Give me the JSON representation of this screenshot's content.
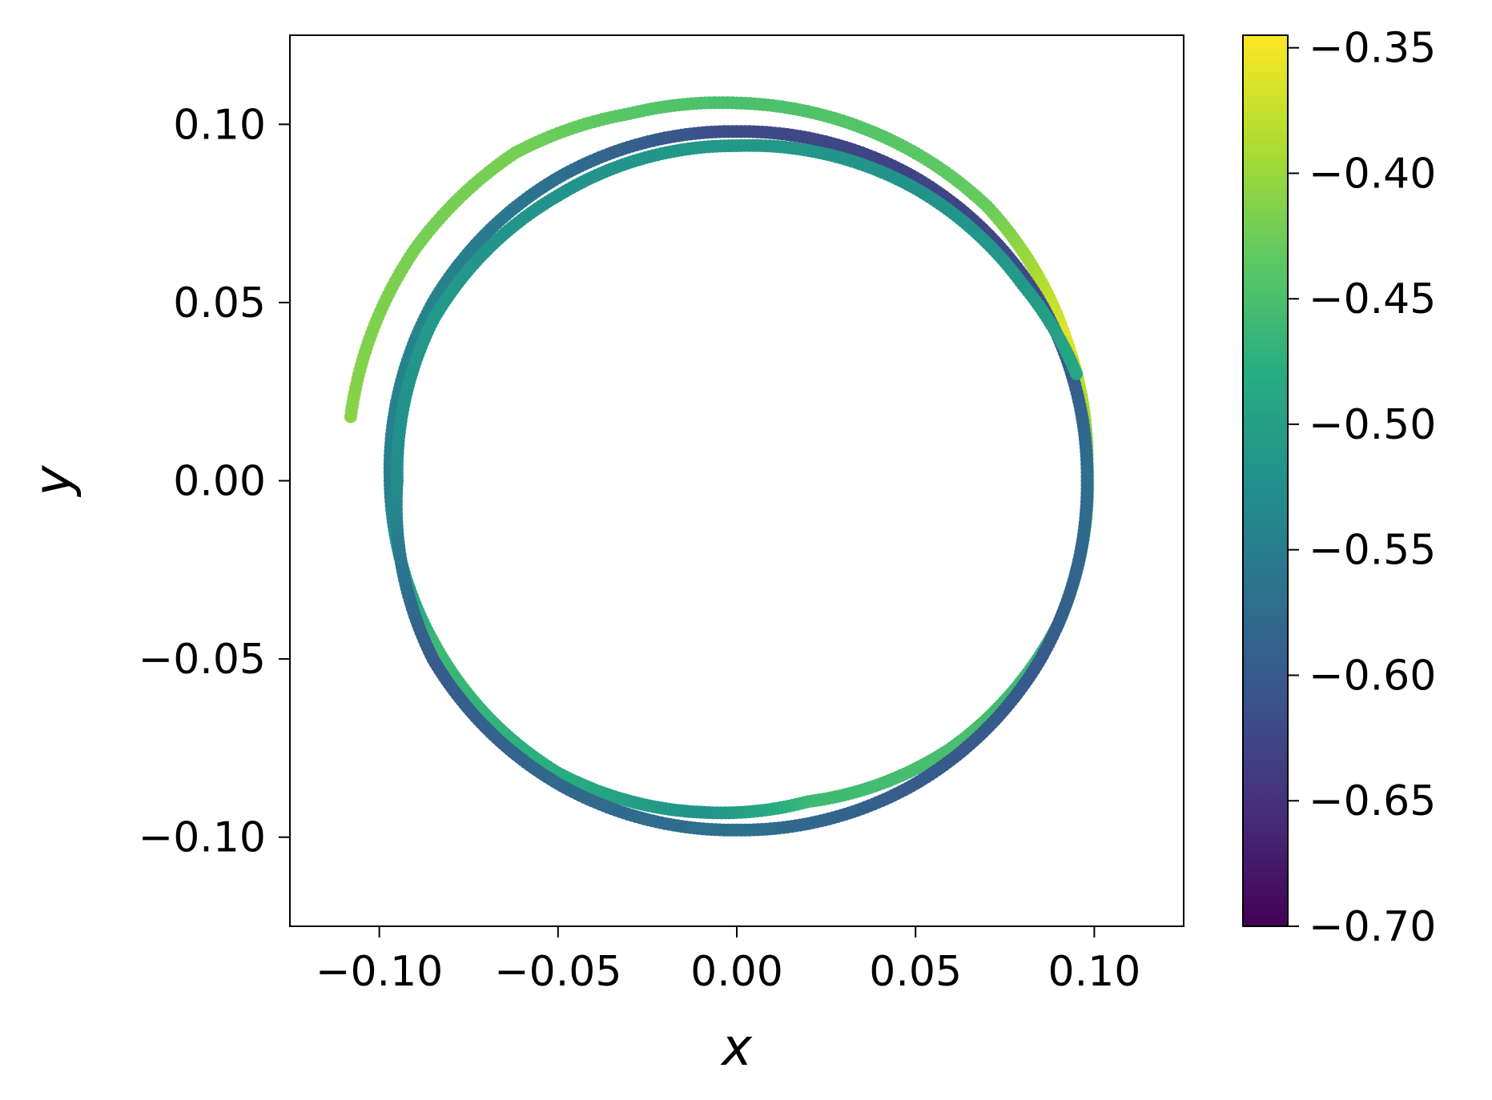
{
  "chart_data": {
    "type": "scatter",
    "title": "",
    "xlabel": "x",
    "ylabel": "y",
    "xlim": [
      -0.125,
      0.125
    ],
    "ylim": [
      -0.125,
      0.125
    ],
    "x_ticks": [
      -0.1,
      -0.05,
      0.0,
      0.05,
      0.1
    ],
    "x_tick_labels": [
      "−0.10",
      "−0.05",
      "0.00",
      "0.05",
      "0.10"
    ],
    "y_ticks": [
      -0.1,
      -0.05,
      0.0,
      0.05,
      0.1
    ],
    "y_tick_labels": [
      "−0.10",
      "−0.05",
      "0.00",
      "0.05",
      "0.10"
    ],
    "grid": false,
    "colormap": "viridis",
    "colorbar": {
      "range": [
        -0.7,
        -0.345
      ],
      "ticks": [
        -0.7,
        -0.65,
        -0.6,
        -0.55,
        -0.5,
        -0.45,
        -0.4,
        -0.35
      ],
      "tick_labels": [
        "−0.70",
        "−0.65",
        "−0.60",
        "−0.55",
        "−0.50",
        "−0.45",
        "−0.40",
        "−0.35"
      ]
    },
    "trajectory": {
      "description_points": [
        {
          "x": -0.108,
          "y": 0.018,
          "c": -0.41
        },
        {
          "x": -0.09,
          "y": 0.065,
          "c": -0.42
        },
        {
          "x": -0.062,
          "y": 0.092,
          "c": -0.42
        },
        {
          "x": -0.03,
          "y": 0.103,
          "c": -0.44
        },
        {
          "x": 0.0,
          "y": 0.106,
          "c": -0.45
        },
        {
          "x": 0.04,
          "y": 0.097,
          "c": -0.44
        },
        {
          "x": 0.07,
          "y": 0.077,
          "c": -0.43
        },
        {
          "x": 0.092,
          "y": 0.04,
          "c": -0.36
        },
        {
          "x": 0.098,
          "y": 0.005,
          "c": -0.42
        },
        {
          "x": 0.09,
          "y": -0.04,
          "c": -0.47
        },
        {
          "x": 0.06,
          "y": -0.075,
          "c": -0.45
        },
        {
          "x": 0.02,
          "y": -0.09,
          "c": -0.46
        },
        {
          "x": -0.01,
          "y": -0.093,
          "c": -0.52
        },
        {
          "x": -0.05,
          "y": -0.082,
          "c": -0.48
        },
        {
          "x": -0.085,
          "y": -0.045,
          "c": -0.46
        },
        {
          "x": -0.097,
          "y": 0.0,
          "c": -0.55
        },
        {
          "x": -0.085,
          "y": 0.05,
          "c": -0.54
        },
        {
          "x": -0.05,
          "y": 0.085,
          "c": -0.57
        },
        {
          "x": 0.0,
          "y": 0.098,
          "c": -0.62
        },
        {
          "x": 0.05,
          "y": 0.085,
          "c": -0.63
        },
        {
          "x": 0.085,
          "y": 0.05,
          "c": -0.62
        },
        {
          "x": 0.098,
          "y": 0.0,
          "c": -0.57
        },
        {
          "x": 0.085,
          "y": -0.05,
          "c": -0.6
        },
        {
          "x": 0.05,
          "y": -0.085,
          "c": -0.6
        },
        {
          "x": 0.0,
          "y": -0.098,
          "c": -0.57
        },
        {
          "x": -0.05,
          "y": -0.085,
          "c": -0.58
        },
        {
          "x": -0.085,
          "y": -0.05,
          "c": -0.6
        },
        {
          "x": -0.095,
          "y": 0.0,
          "c": -0.53
        },
        {
          "x": -0.085,
          "y": 0.045,
          "c": -0.51
        },
        {
          "x": -0.05,
          "y": 0.08,
          "c": -0.52
        },
        {
          "x": 0.0,
          "y": 0.094,
          "c": -0.51
        },
        {
          "x": 0.05,
          "y": 0.082,
          "c": -0.52
        },
        {
          "x": 0.08,
          "y": 0.055,
          "c": -0.51
        },
        {
          "x": 0.095,
          "y": 0.03,
          "c": -0.49
        }
      ]
    }
  }
}
